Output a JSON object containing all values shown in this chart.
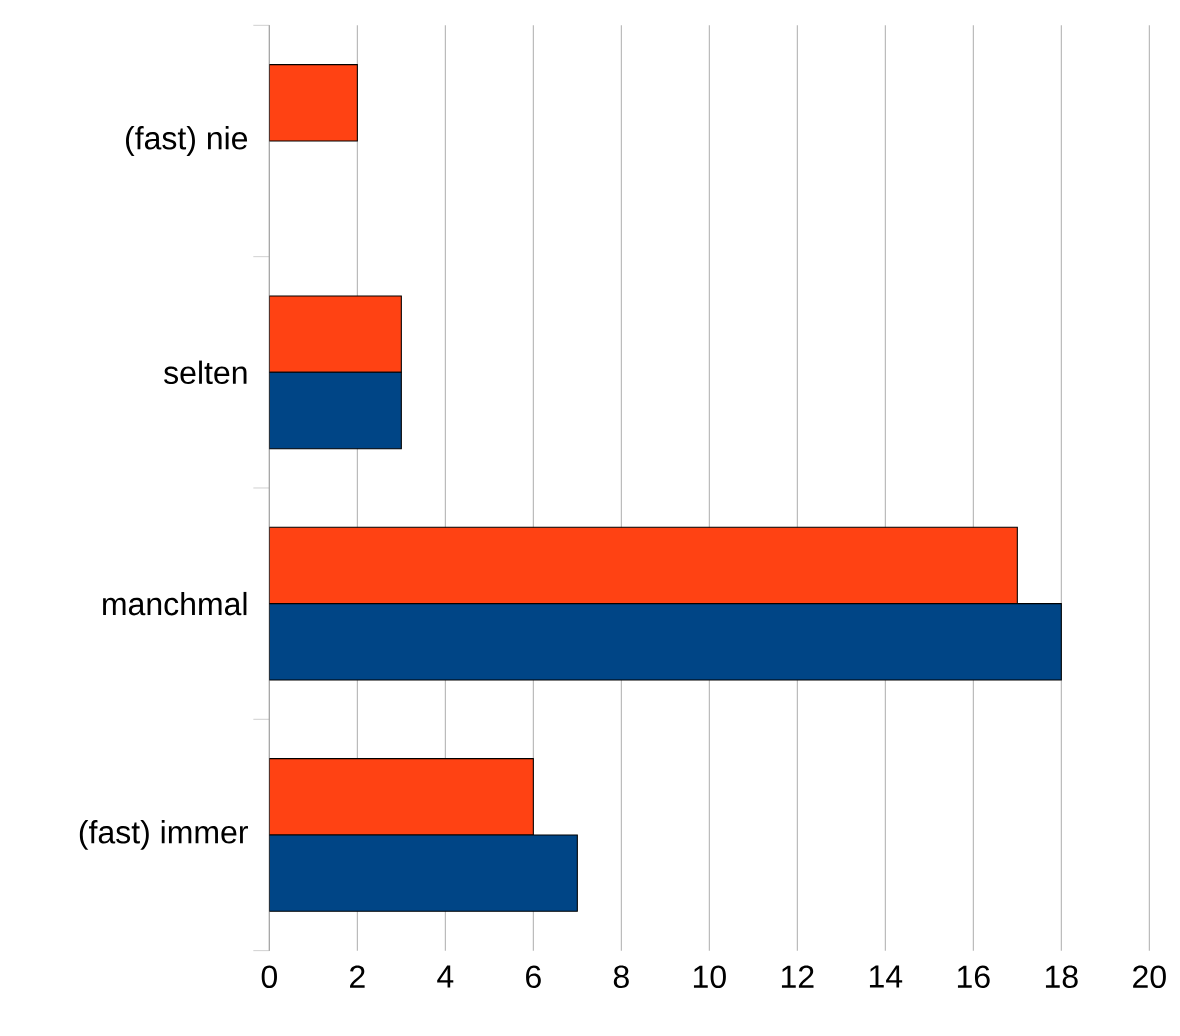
{
  "chart_data": {
    "type": "bar",
    "orientation": "horizontal",
    "categories": [
      "(fast) nie",
      "selten",
      "manchmal",
      "(fast) immer"
    ],
    "series": [
      {
        "color": "#ff4213",
        "values": [
          2,
          3,
          17,
          6
        ]
      },
      {
        "color": "#004586",
        "values": [
          null,
          3,
          18,
          7
        ]
      }
    ],
    "xlim": [
      0,
      20
    ],
    "xticks": [
      0,
      2,
      4,
      6,
      8,
      10,
      12,
      14,
      16,
      18,
      20
    ],
    "grid": "x"
  }
}
